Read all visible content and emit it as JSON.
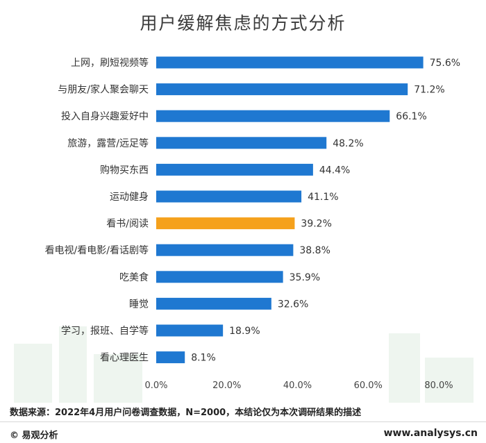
{
  "chart_data": {
    "type": "bar",
    "orientation": "horizontal",
    "title": "用户缓解焦虑的方式分析",
    "categories": [
      "上网，刷短视频等",
      "与朋友/家人聚会聊天",
      "投入自身兴趣爱好中",
      "旅游，露营/远足等",
      "购物买东西",
      "运动健身",
      "看书/阅读",
      "看电视/看电影/看话剧等",
      "吃美食",
      "睡觉",
      "学习，报班、自学等",
      "看心理医生"
    ],
    "values": [
      75.6,
      71.2,
      66.1,
      48.2,
      44.4,
      41.1,
      39.2,
      38.8,
      35.9,
      32.6,
      18.9,
      8.1
    ],
    "value_labels": [
      "75.6%",
      "71.2%",
      "66.1%",
      "48.2%",
      "44.4%",
      "41.1%",
      "39.2%",
      "38.8%",
      "35.9%",
      "32.6%",
      "18.9%",
      "8.1%"
    ],
    "xlim": [
      0,
      80
    ],
    "x_ticks": [
      0,
      20,
      40,
      60,
      80
    ],
    "x_tick_labels": [
      "0.0%",
      "20.0%",
      "40.0%",
      "60.0%",
      "80.0%"
    ],
    "grid": false,
    "colors": {
      "default": "#1f78d1",
      "highlight": "#f5a11c"
    },
    "highlight_index": 6
  },
  "footer": {
    "source": "数据来源：2022年4月用户问卷调查数据，N=2000，本结论仅为本次调研结果的描述",
    "brand": "© 易观分析",
    "site": "www.analysys.cn"
  }
}
